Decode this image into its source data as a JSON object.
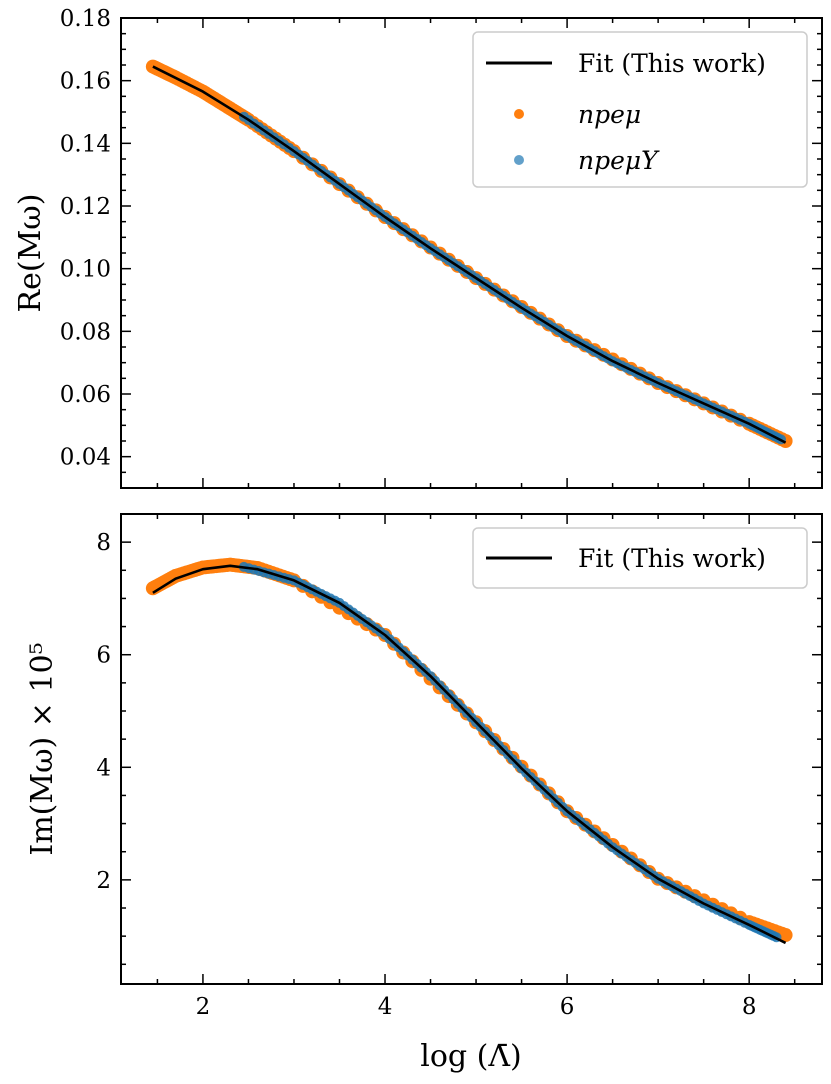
{
  "chart_data": [
    {
      "type": "line",
      "panel": "top",
      "title": "",
      "xlabel": "",
      "ylabel": "Re(Mω)",
      "xlim": [
        1.1,
        8.8
      ],
      "ylim": [
        0.03,
        0.18
      ],
      "xticks": [
        2,
        4,
        6,
        8
      ],
      "yticks": [
        0.04,
        0.06,
        0.08,
        0.1,
        0.12,
        0.14,
        0.16,
        0.18
      ],
      "ytick_labels": [
        "0.04",
        "0.06",
        "0.08",
        "0.10",
        "0.12",
        "0.14",
        "0.16",
        "0.18"
      ],
      "grid": false,
      "legend_position": "top-right",
      "legend": [
        "Fit (This work)",
        "npeμ",
        "npeμY"
      ],
      "series": [
        {
          "name": "Fit (This work)",
          "kind": "line",
          "color": "#000000",
          "x": [
            1.45,
            2.0,
            2.5,
            3.0,
            3.5,
            4.0,
            4.5,
            5.0,
            5.5,
            6.0,
            6.5,
            7.0,
            7.5,
            8.0,
            8.4
          ],
          "y": [
            0.1645,
            0.1565,
            0.1475,
            0.1375,
            0.127,
            0.1165,
            0.1065,
            0.097,
            0.0875,
            0.0785,
            0.0705,
            0.0635,
            0.057,
            0.0505,
            0.0445
          ]
        },
        {
          "name": "npeμ",
          "kind": "scatter",
          "color": "#ff7f0e",
          "x": [
            1.45,
            1.7,
            2.0,
            2.25,
            2.5,
            3.0,
            4.0,
            5.0,
            6.0,
            7.0,
            8.0,
            8.4
          ],
          "y": [
            0.1645,
            0.161,
            0.1565,
            0.152,
            0.1475,
            0.1375,
            0.1165,
            0.097,
            0.0785,
            0.0635,
            0.0505,
            0.045
          ]
        },
        {
          "name": "npeμY",
          "kind": "scatter",
          "color": "#1f77b4",
          "x": [
            2.45,
            3.0,
            3.5,
            4.0,
            4.5,
            5.0,
            5.5,
            6.0,
            6.5,
            7.0,
            7.5,
            8.0,
            8.35
          ],
          "y": [
            0.1485,
            0.1375,
            0.127,
            0.1165,
            0.1065,
            0.097,
            0.0875,
            0.0785,
            0.0705,
            0.0635,
            0.057,
            0.0505,
            0.0455
          ]
        }
      ]
    },
    {
      "type": "line",
      "panel": "bottom",
      "title": "",
      "xlabel": "log (Λ̄)",
      "ylabel": "Im(Mω) × 10⁵",
      "xlim": [
        1.1,
        8.8
      ],
      "ylim": [
        0.15,
        8.5
      ],
      "xticks": [
        2,
        4,
        6,
        8
      ],
      "xtick_labels": [
        "2",
        "4",
        "6",
        "8"
      ],
      "yticks": [
        2,
        4,
        6,
        8
      ],
      "ytick_labels": [
        "2",
        "4",
        "6",
        "8"
      ],
      "grid": false,
      "legend_position": "top-right",
      "legend": [
        "Fit (This work)"
      ],
      "series": [
        {
          "name": "Fit (This work)",
          "kind": "line",
          "color": "#000000",
          "x": [
            1.45,
            1.7,
            2.0,
            2.3,
            2.6,
            3.0,
            3.5,
            4.0,
            4.5,
            5.0,
            5.5,
            6.0,
            6.5,
            7.0,
            7.5,
            8.0,
            8.4
          ],
          "y": [
            7.1,
            7.35,
            7.52,
            7.58,
            7.52,
            7.32,
            6.92,
            6.35,
            5.62,
            4.8,
            3.98,
            3.22,
            2.58,
            2.02,
            1.58,
            1.2,
            0.88
          ]
        },
        {
          "name": "npeμ",
          "kind": "scatter",
          "color": "#ff7f0e",
          "x": [
            1.45,
            1.7,
            2.0,
            2.3,
            2.6,
            3.0,
            4.0,
            5.0,
            6.0,
            7.0,
            8.0,
            8.4
          ],
          "y": [
            7.18,
            7.4,
            7.55,
            7.6,
            7.54,
            7.32,
            6.35,
            4.8,
            3.22,
            2.02,
            1.25,
            1.02
          ]
        },
        {
          "name": "npeμY",
          "kind": "scatter",
          "color": "#1f77b4",
          "x": [
            2.45,
            3.0,
            3.5,
            4.0,
            4.5,
            5.0,
            5.5,
            6.0,
            6.5,
            7.0,
            7.5,
            8.0,
            8.3
          ],
          "y": [
            7.56,
            7.32,
            6.92,
            6.35,
            5.62,
            4.8,
            3.98,
            3.22,
            2.58,
            2.02,
            1.58,
            1.2,
            0.98
          ]
        }
      ]
    }
  ]
}
